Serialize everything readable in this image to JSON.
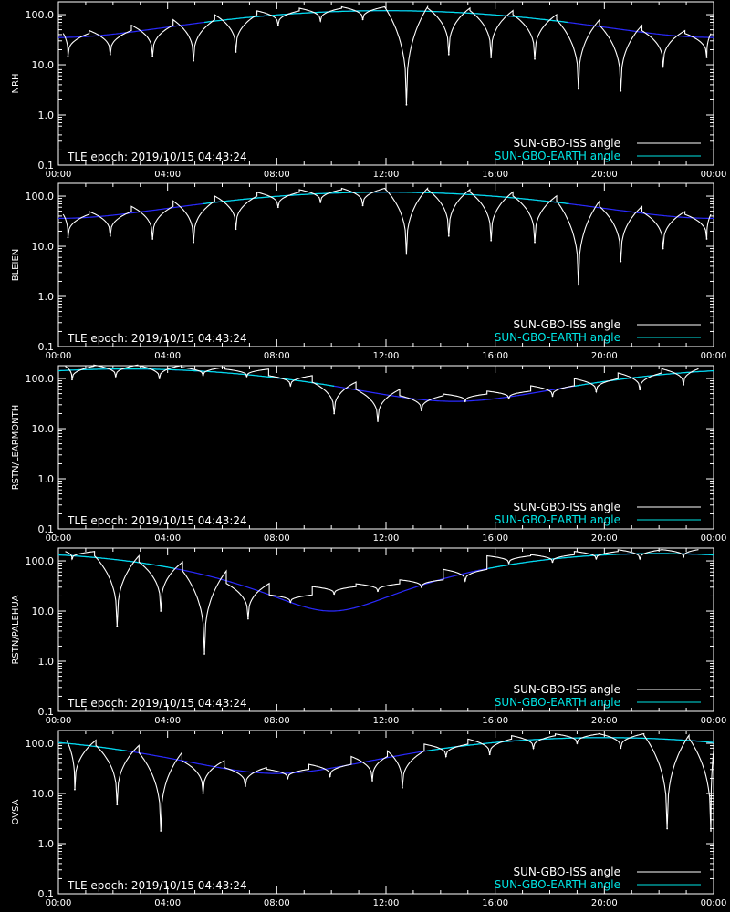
{
  "figure": {
    "background": "#000000",
    "axis_color": "#ffffff",
    "iss_color": "#ffffff",
    "iss_dim_color": "#8c8c8c",
    "earth_cyan_color": "#00e5e5",
    "earth_blue_color": "#2a2aff"
  },
  "chart_data": [
    {
      "type": "line",
      "station": "NRH",
      "ylabel": "NRH",
      "yscale": "log",
      "ylim": [
        0.1,
        180
      ],
      "xlim": [
        0,
        24
      ],
      "x_ticks": [
        "00:00",
        "04:00",
        "08:00",
        "12:00",
        "16:00",
        "20:00",
        "00:00"
      ],
      "y_ticks": [
        "0.1",
        "1.0",
        "10.0",
        "100.0"
      ],
      "annotation": "TLE epoch: 2019/10/15 04:43:24",
      "legend": [
        {
          "label": "SUN-GBO-ISS angle",
          "color": "#ffffff"
        },
        {
          "label": "SUN-GBO-EARTH angle",
          "color": "#00e5e5"
        }
      ],
      "legend_position": "bottom-right",
      "earth_track": {
        "peak_hour": 12.0,
        "max": 120,
        "min": 35
      },
      "iss_minima": [
        {
          "hour": 0.35,
          "value": 15
        },
        {
          "hour": 1.9,
          "value": 16
        },
        {
          "hour": 3.45,
          "value": 15
        },
        {
          "hour": 4.95,
          "value": 12
        },
        {
          "hour": 6.5,
          "value": 18
        },
        {
          "hour": 8.05,
          "value": 62
        },
        {
          "hour": 9.6,
          "value": 75
        },
        {
          "hour": 11.15,
          "value": 80
        },
        {
          "hour": 12.75,
          "value": 1.6
        },
        {
          "hour": 14.3,
          "value": 16
        },
        {
          "hour": 15.85,
          "value": 14
        },
        {
          "hour": 17.45,
          "value": 13
        },
        {
          "hour": 19.05,
          "value": 3.3
        },
        {
          "hour": 20.6,
          "value": 3.0
        },
        {
          "hour": 22.15,
          "value": 9
        },
        {
          "hour": 23.75,
          "value": 14
        }
      ]
    },
    {
      "type": "line",
      "station": "BLEIEN",
      "ylabel": "BLEIEN",
      "yscale": "log",
      "ylim": [
        0.1,
        180
      ],
      "xlim": [
        0,
        24
      ],
      "x_ticks": [
        "00:00",
        "04:00",
        "08:00",
        "12:00",
        "16:00",
        "20:00",
        "00:00"
      ],
      "y_ticks": [
        "0.1",
        "1.0",
        "10.0",
        "100.0"
      ],
      "annotation": "TLE epoch: 2019/10/15 04:43:24",
      "legend": [
        {
          "label": "SUN-GBO-ISS angle",
          "color": "#ffffff"
        },
        {
          "label": "SUN-GBO-EARTH angle",
          "color": "#00e5e5"
        }
      ],
      "legend_position": "bottom-right",
      "earth_track": {
        "peak_hour": 12.0,
        "max": 120,
        "min": 36
      },
      "iss_minima": [
        {
          "hour": 0.35,
          "value": 15
        },
        {
          "hour": 1.9,
          "value": 16
        },
        {
          "hour": 3.45,
          "value": 14
        },
        {
          "hour": 4.95,
          "value": 12
        },
        {
          "hour": 6.5,
          "value": 22
        },
        {
          "hour": 8.05,
          "value": 60
        },
        {
          "hour": 9.6,
          "value": 75
        },
        {
          "hour": 11.15,
          "value": 65
        },
        {
          "hour": 12.75,
          "value": 7
        },
        {
          "hour": 14.3,
          "value": 16
        },
        {
          "hour": 15.85,
          "value": 13
        },
        {
          "hour": 17.45,
          "value": 12
        },
        {
          "hour": 19.05,
          "value": 1.7
        },
        {
          "hour": 20.6,
          "value": 5
        },
        {
          "hour": 22.15,
          "value": 9
        },
        {
          "hour": 23.75,
          "value": 14
        }
      ]
    },
    {
      "type": "line",
      "station": "RSTN/LEARMONTH",
      "ylabel": "RSTN/LEARMONTH",
      "yscale": "log",
      "ylim": [
        0.1,
        180
      ],
      "xlim": [
        0,
        24
      ],
      "x_ticks": [
        "00:00",
        "04:00",
        "08:00",
        "12:00",
        "16:00",
        "20:00",
        "00:00"
      ],
      "y_ticks": [
        "0.1",
        "1.0",
        "10.0",
        "100.0"
      ],
      "annotation": "TLE epoch: 2019/10/15 04:43:24",
      "legend": [
        {
          "label": "SUN-GBO-ISS angle",
          "color": "#ffffff"
        },
        {
          "label": "SUN-GBO-EARTH angle",
          "color": "#00e5e5"
        }
      ],
      "legend_position": "bottom-right",
      "earth_track": {
        "peak_hour": 2.5,
        "max": 155,
        "min": 35
      },
      "iss_minima": [
        {
          "hour": 0.5,
          "value": 95
        },
        {
          "hour": 2.1,
          "value": 110
        },
        {
          "hour": 3.7,
          "value": 100
        },
        {
          "hour": 5.3,
          "value": 115
        },
        {
          "hour": 6.9,
          "value": 110
        },
        {
          "hour": 8.5,
          "value": 72
        },
        {
          "hour": 10.1,
          "value": 20
        },
        {
          "hour": 11.7,
          "value": 14
        },
        {
          "hour": 13.3,
          "value": 23
        },
        {
          "hour": 14.9,
          "value": 35
        },
        {
          "hour": 16.5,
          "value": 40
        },
        {
          "hour": 18.1,
          "value": 45
        },
        {
          "hour": 19.7,
          "value": 55
        },
        {
          "hour": 21.3,
          "value": 60
        },
        {
          "hour": 22.9,
          "value": 75
        }
      ]
    },
    {
      "type": "line",
      "station": "RSTN/PALEHUA",
      "ylabel": "RSTN/PALEHUA",
      "yscale": "log",
      "ylim": [
        0.1,
        180
      ],
      "xlim": [
        0,
        24
      ],
      "x_ticks": [
        "00:00",
        "04:00",
        "08:00",
        "12:00",
        "16:00",
        "20:00",
        "00:00"
      ],
      "y_ticks": [
        "0.1",
        "1.0",
        "10.0",
        "100.0"
      ],
      "annotation": "TLE epoch: 2019/10/15 04:43:24",
      "legend": [
        {
          "label": "SUN-GBO-ISS angle",
          "color": "#ffffff"
        },
        {
          "label": "SUN-GBO-EARTH angle",
          "color": "#00e5e5"
        }
      ],
      "legend_position": "bottom-right",
      "earth_track": {
        "peak_hour": 22.0,
        "max": 140,
        "min": 10
      },
      "iss_minima": [
        {
          "hour": 0.5,
          "value": 110
        },
        {
          "hour": 2.15,
          "value": 5
        },
        {
          "hour": 3.75,
          "value": 10
        },
        {
          "hour": 5.35,
          "value": 1.4
        },
        {
          "hour": 6.95,
          "value": 7
        },
        {
          "hour": 8.5,
          "value": 15
        },
        {
          "hour": 10.1,
          "value": 22
        },
        {
          "hour": 11.7,
          "value": 25
        },
        {
          "hour": 13.3,
          "value": 30
        },
        {
          "hour": 14.9,
          "value": 40
        },
        {
          "hour": 16.5,
          "value": 90
        },
        {
          "hour": 18.1,
          "value": 95
        },
        {
          "hour": 19.7,
          "value": 110
        },
        {
          "hour": 21.3,
          "value": 110
        },
        {
          "hour": 22.9,
          "value": 120
        }
      ]
    },
    {
      "type": "line",
      "station": "OVSA",
      "ylabel": "OVSA",
      "yscale": "log",
      "ylim": [
        0.1,
        180
      ],
      "xlim": [
        0,
        24
      ],
      "x_ticks": [
        "00:00",
        "04:00",
        "08:00",
        "12:00",
        "16:00",
        "20:00",
        "00:00"
      ],
      "y_ticks": [
        "0.1",
        "1.0",
        "10.0",
        "100.0"
      ],
      "annotation": "TLE epoch: 2019/10/15 04:43:24",
      "legend": [
        {
          "label": "SUN-GBO-ISS angle",
          "color": "#ffffff"
        },
        {
          "label": "SUN-GBO-EARTH angle",
          "color": "#00e5e5"
        }
      ],
      "legend_position": "bottom-right",
      "earth_track": {
        "peak_hour": 20.0,
        "max": 130,
        "min": 25
      },
      "iss_minima": [
        {
          "hour": 0.6,
          "value": 12
        },
        {
          "hour": 2.15,
          "value": 6
        },
        {
          "hour": 3.75,
          "value": 1.8
        },
        {
          "hour": 5.3,
          "value": 10
        },
        {
          "hour": 6.85,
          "value": 14
        },
        {
          "hour": 8.4,
          "value": 20
        },
        {
          "hour": 9.95,
          "value": 22
        },
        {
          "hour": 11.5,
          "value": 18
        },
        {
          "hour": 12.6,
          "value": 13
        },
        {
          "hour": 14.2,
          "value": 55
        },
        {
          "hour": 15.8,
          "value": 60
        },
        {
          "hour": 17.4,
          "value": 80
        },
        {
          "hour": 19.0,
          "value": 100
        },
        {
          "hour": 20.6,
          "value": 80
        },
        {
          "hour": 22.3,
          "value": 2.0
        },
        {
          "hour": 23.9,
          "value": 1.8
        }
      ]
    }
  ]
}
